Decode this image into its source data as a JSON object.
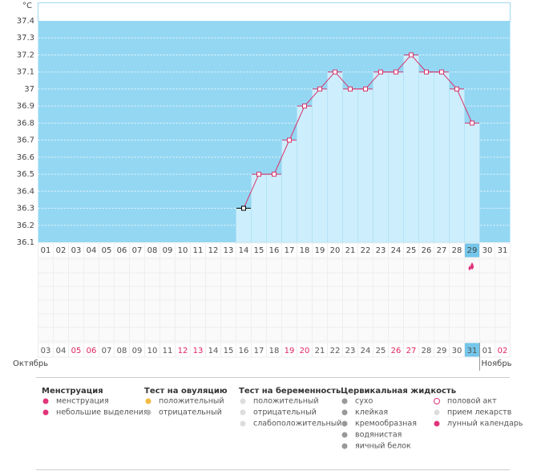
{
  "chart_data": {
    "type": "line",
    "y_label": "°C",
    "categories": [
      "01",
      "02",
      "03",
      "04",
      "05",
      "06",
      "07",
      "08",
      "09",
      "10",
      "11",
      "12",
      "13",
      "14",
      "15",
      "16",
      "17",
      "18",
      "19",
      "20",
      "21",
      "22",
      "23",
      "24",
      "25",
      "26",
      "27",
      "28",
      "29",
      "30",
      "31"
    ],
    "dates": [
      "03",
      "04",
      "05",
      "06",
      "07",
      "08",
      "09",
      "10",
      "11",
      "12",
      "13",
      "14",
      "15",
      "16",
      "17",
      "18",
      "19",
      "20",
      "21",
      "22",
      "23",
      "24",
      "25",
      "26",
      "27",
      "28",
      "29",
      "30",
      "31",
      "01",
      "02"
    ],
    "date_colors": [
      "#555555",
      "#555555",
      "#e0245e",
      "#e0245e",
      "#555555",
      "#555555",
      "#555555",
      "#555555",
      "#555555",
      "#e0245e",
      "#e0245e",
      "#555555",
      "#555555",
      "#555555",
      "#555555",
      "#555555",
      "#e0245e",
      "#e0245e",
      "#555555",
      "#555555",
      "#555555",
      "#555555",
      "#555555",
      "#e0245e",
      "#e0245e",
      "#555555",
      "#555555",
      "#555555",
      "#555555",
      "#555555",
      "#e0245e"
    ],
    "months": [
      "Октябрь",
      "Ноябрь"
    ],
    "series": [
      {
        "color": "#d8336a",
        "first_point_color": "#000000",
        "values": [
          null,
          null,
          null,
          null,
          null,
          null,
          null,
          null,
          null,
          null,
          null,
          null,
          null,
          36.3,
          36.5,
          36.5,
          36.7,
          36.9,
          37,
          37.1,
          37,
          37,
          37.1,
          37.1,
          37.2,
          37.1,
          37.1,
          37,
          36.8,
          null,
          null
        ]
      }
    ],
    "ylim": [
      36.1,
      37.4
    ],
    "yticks": [
      36.1,
      36.2,
      36.3,
      36.4,
      36.5,
      36.6,
      36.7,
      36.8,
      36.9,
      37,
      37.1,
      37.2,
      37.3,
      37.4
    ],
    "grid": true,
    "current_day": "29",
    "current_date": "31",
    "menstruation_days": [
      "29"
    ]
  },
  "legend": {
    "groups": [
      {
        "title": "Менструация",
        "items": [
          "менструация",
          "небольшие выделения"
        ]
      },
      {
        "title": "Тест на овуляцию",
        "items": [
          "положительный",
          "отрицательный"
        ]
      },
      {
        "title": "Тест на беременность",
        "items": [
          "положительный",
          "отрицательный",
          "слабоположительный"
        ]
      },
      {
        "title": "Цервикальная жидкость",
        "items": [
          "сухо",
          "клейкая",
          "кремообразная",
          "водянистая",
          "яичный белок"
        ]
      },
      {
        "items": [
          "половой акт",
          "прием лекарств",
          "лунный календарь"
        ]
      }
    ]
  }
}
